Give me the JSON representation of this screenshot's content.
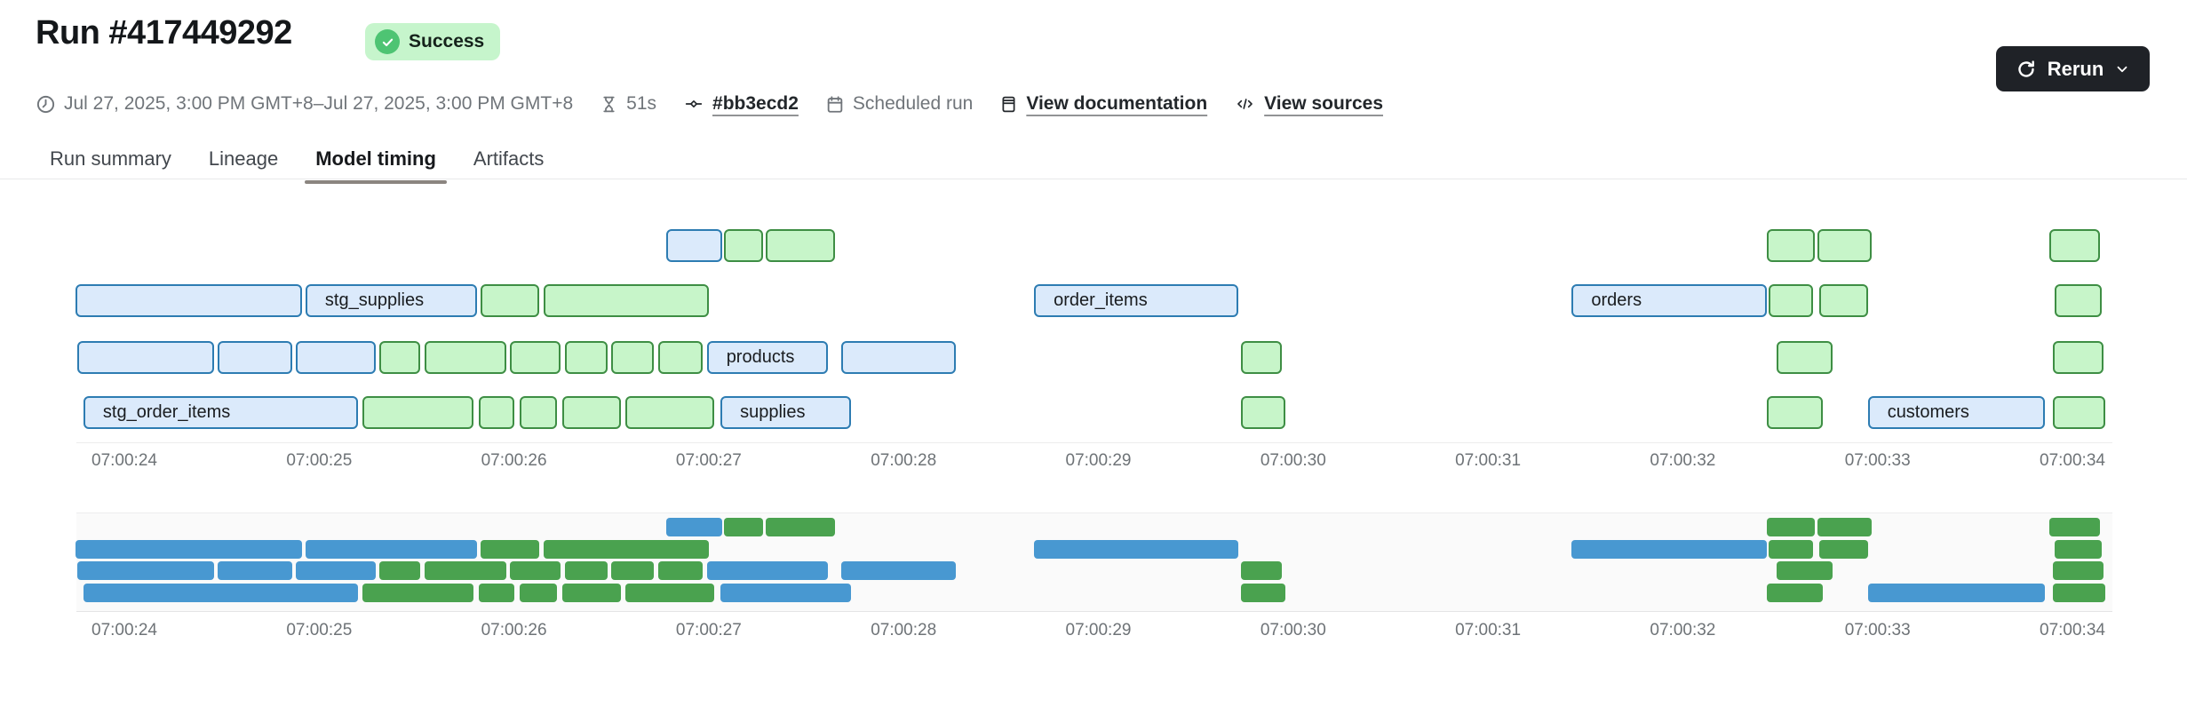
{
  "header": {
    "title": "Run #417449292",
    "status": "Success",
    "rerun_label": "Rerun"
  },
  "meta_items": [
    {
      "icon": "clock-icon",
      "label": "Jul 27, 2025, 3:00 PM GMT+8–Jul 27, 2025, 3:00 PM GMT+8"
    },
    {
      "icon": "hourglass-icon",
      "label": "51s"
    },
    {
      "icon": "commit-icon",
      "label": "#bb3ecd2"
    },
    {
      "icon": "calendar-icon",
      "label": "Scheduled run"
    },
    {
      "icon": "document-icon",
      "label": "View documentation"
    },
    {
      "icon": "code-icon",
      "label": "View sources"
    }
  ],
  "tabs": [
    {
      "label": "Run summary",
      "active": false
    },
    {
      "label": "Lineage",
      "active": false
    },
    {
      "label": "Model timing",
      "active": true
    },
    {
      "label": "Artifacts",
      "active": false
    }
  ],
  "colors": {
    "status_badge_bg": "#c6f5cc",
    "status_badge_dot": "#4ec473",
    "rerun_button_bg": "#1f2227",
    "active_tab_underline": "#8b8580",
    "bar_blue_fill": "#dbeafb",
    "bar_blue_border": "#2d7cb2",
    "bar_green_fill": "#c7f5c9",
    "bar_green_border": "#3e8e44",
    "minimap_blue": "#4898d1",
    "minimap_green": "#4aa24f"
  },
  "chart_data": {
    "type": "gantt",
    "title": "Model timing",
    "time_base": "07:00:00",
    "time_unit": "seconds after 07:00:00",
    "axis_start": 24,
    "axis_end": 34,
    "axis_ticks": [
      "07:00:24",
      "07:00:25",
      "07:00:26",
      "07:00:27",
      "07:00:28",
      "07:00:29",
      "07:00:30",
      "07:00:31",
      "07:00:32",
      "07:00:33",
      "07:00:34"
    ],
    "views": [
      "detail-with-labels",
      "minimap"
    ],
    "rows": [
      {
        "bars": [
          {
            "start": 26.78,
            "end": 27.07,
            "color": "blue"
          },
          {
            "start": 27.08,
            "end": 27.28,
            "color": "green"
          },
          {
            "start": 27.29,
            "end": 27.65,
            "color": "green"
          },
          {
            "start": 32.43,
            "end": 32.68,
            "color": "green"
          },
          {
            "start": 32.69,
            "end": 32.97,
            "color": "green"
          },
          {
            "start": 33.88,
            "end": 34.14,
            "color": "green"
          }
        ]
      },
      {
        "bars": [
          {
            "start": 23.75,
            "end": 24.91,
            "color": "blue"
          },
          {
            "start": 24.93,
            "end": 25.81,
            "color": "blue",
            "label": "stg_supplies"
          },
          {
            "start": 25.83,
            "end": 26.13,
            "color": "green"
          },
          {
            "start": 26.15,
            "end": 27.0,
            "color": "green"
          },
          {
            "start": 28.67,
            "end": 29.72,
            "color": "blue",
            "label": "order_items"
          },
          {
            "start": 31.43,
            "end": 32.43,
            "color": "blue",
            "label": "orders"
          },
          {
            "start": 32.44,
            "end": 32.67,
            "color": "green"
          },
          {
            "start": 32.7,
            "end": 32.95,
            "color": "green"
          },
          {
            "start": 33.91,
            "end": 34.15,
            "color": "green"
          }
        ]
      },
      {
        "bars": [
          {
            "start": 23.76,
            "end": 24.46,
            "color": "blue"
          },
          {
            "start": 24.48,
            "end": 24.86,
            "color": "blue"
          },
          {
            "start": 24.88,
            "end": 25.29,
            "color": "blue"
          },
          {
            "start": 25.31,
            "end": 25.52,
            "color": "green"
          },
          {
            "start": 25.54,
            "end": 25.96,
            "color": "green"
          },
          {
            "start": 25.98,
            "end": 26.24,
            "color": "green"
          },
          {
            "start": 26.26,
            "end": 26.48,
            "color": "green"
          },
          {
            "start": 26.5,
            "end": 26.72,
            "color": "green"
          },
          {
            "start": 26.74,
            "end": 26.97,
            "color": "green"
          },
          {
            "start": 26.99,
            "end": 27.61,
            "color": "blue",
            "label": "products"
          },
          {
            "start": 27.68,
            "end": 28.27,
            "color": "blue"
          },
          {
            "start": 29.73,
            "end": 29.94,
            "color": "green"
          },
          {
            "start": 32.48,
            "end": 32.77,
            "color": "green"
          },
          {
            "start": 33.9,
            "end": 34.16,
            "color": "green"
          }
        ]
      },
      {
        "bars": [
          {
            "start": 23.79,
            "end": 25.2,
            "color": "blue",
            "label": "stg_order_items"
          },
          {
            "start": 25.22,
            "end": 25.79,
            "color": "green"
          },
          {
            "start": 25.82,
            "end": 26.0,
            "color": "green"
          },
          {
            "start": 26.03,
            "end": 26.22,
            "color": "green"
          },
          {
            "start": 26.25,
            "end": 26.55,
            "color": "green"
          },
          {
            "start": 26.57,
            "end": 27.03,
            "color": "green"
          },
          {
            "start": 27.06,
            "end": 27.73,
            "color": "blue",
            "label": "supplies"
          },
          {
            "start": 29.73,
            "end": 29.96,
            "color": "green"
          },
          {
            "start": 32.43,
            "end": 32.72,
            "color": "green"
          },
          {
            "start": 32.95,
            "end": 33.86,
            "color": "blue",
            "label": "customers"
          },
          {
            "start": 33.9,
            "end": 34.17,
            "color": "green"
          }
        ]
      }
    ]
  }
}
